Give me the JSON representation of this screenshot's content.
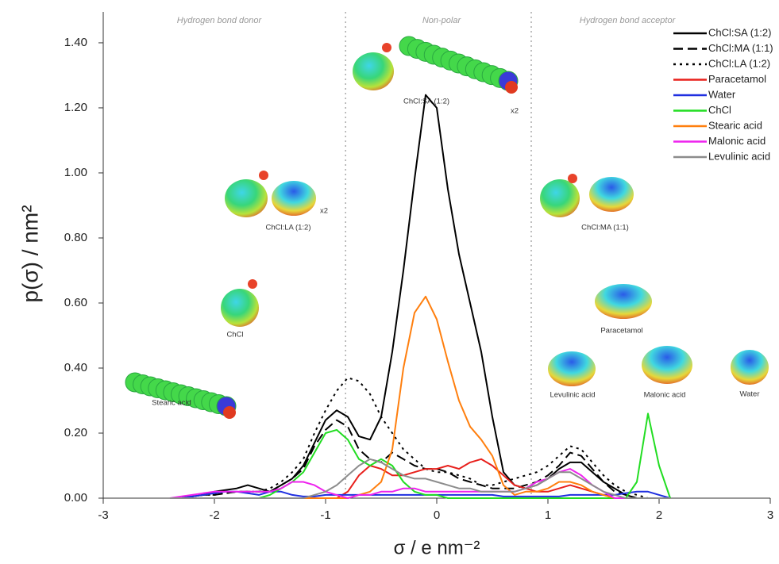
{
  "chart_data": {
    "type": "line",
    "xlabel": "σ / e nm⁻²",
    "ylabel": "p(σ) / nm²",
    "regions": [
      "Hydrogen bond donor",
      "Non-polar",
      "Hydrogen bond acceptor"
    ],
    "dividers": [
      -0.82,
      0.85
    ],
    "annotations": [
      "ChCl:SA (1:2)",
      "x2",
      "ChCl:LA (1:2)",
      "x2",
      "ChCl:MA (1:1)",
      "ChCl",
      "Paracetamol",
      "Stearic acid",
      "Levulinic acid",
      "Malonic acid",
      "Water"
    ],
    "x": [
      -2.4,
      -2.3,
      -2.2,
      -2.1,
      -2.0,
      -1.9,
      -1.8,
      -1.7,
      -1.6,
      -1.5,
      -1.4,
      -1.3,
      -1.2,
      -1.1,
      -1.0,
      -0.9,
      -0.8,
      -0.7,
      -0.6,
      -0.5,
      -0.4,
      -0.3,
      -0.2,
      -0.1,
      0.0,
      0.1,
      0.2,
      0.3,
      0.4,
      0.5,
      0.6,
      0.7,
      0.8,
      0.9,
      1.0,
      1.1,
      1.2,
      1.3,
      1.4,
      1.5,
      1.6,
      1.7,
      1.8,
      1.9,
      2.0,
      2.1
    ],
    "series": [
      {
        "name": "ChCl:SA (1:2)",
        "color": "#000000",
        "dash": "solid",
        "values": [
          0,
          0,
          0.005,
          0.01,
          0.02,
          0.025,
          0.03,
          0.04,
          0.03,
          0.02,
          0.04,
          0.06,
          0.1,
          0.17,
          0.24,
          0.27,
          0.25,
          0.19,
          0.18,
          0.25,
          0.45,
          0.7,
          0.98,
          1.24,
          1.2,
          0.95,
          0.75,
          0.6,
          0.45,
          0.25,
          0.08,
          0.04,
          0.03,
          0.04,
          0.06,
          0.09,
          0.11,
          0.11,
          0.08,
          0.05,
          0.03,
          0.01,
          0,
          0,
          0,
          0
        ]
      },
      {
        "name": "ChCl:MA (1:1)",
        "color": "#000000",
        "dash": "dashed",
        "values": [
          0,
          0,
          0.005,
          0.01,
          0.01,
          0.015,
          0.02,
          0.02,
          0.02,
          0.02,
          0.04,
          0.06,
          0.09,
          0.16,
          0.21,
          0.24,
          0.22,
          0.15,
          0.12,
          0.11,
          0.14,
          0.12,
          0.1,
          0.09,
          0.09,
          0.08,
          0.06,
          0.05,
          0.04,
          0.03,
          0.03,
          0.03,
          0.04,
          0.05,
          0.07,
          0.1,
          0.14,
          0.13,
          0.09,
          0.05,
          0.02,
          0.01,
          0,
          0,
          0,
          0
        ]
      },
      {
        "name": "ChCl:LA (1:2)",
        "color": "#000000",
        "dash": "dotted",
        "values": [
          0,
          0,
          0.005,
          0.01,
          0.01,
          0.015,
          0.02,
          0.02,
          0.02,
          0.03,
          0.05,
          0.08,
          0.12,
          0.2,
          0.27,
          0.33,
          0.37,
          0.36,
          0.32,
          0.25,
          0.2,
          0.15,
          0.12,
          0.09,
          0.08,
          0.08,
          0.07,
          0.06,
          0.04,
          0.04,
          0.05,
          0.06,
          0.07,
          0.08,
          0.1,
          0.13,
          0.16,
          0.15,
          0.11,
          0.07,
          0.04,
          0.02,
          0.01,
          0,
          0,
          0
        ]
      },
      {
        "name": "Paracetamol",
        "color": "#e8201c",
        "dash": "solid",
        "values": [
          0,
          0,
          0,
          0,
          0,
          0,
          0,
          0,
          0,
          0,
          0,
          0,
          0,
          0,
          0,
          0,
          0.02,
          0.07,
          0.1,
          0.09,
          0.07,
          0.07,
          0.08,
          0.09,
          0.09,
          0.1,
          0.09,
          0.11,
          0.12,
          0.1,
          0.07,
          0.04,
          0.03,
          0.02,
          0.02,
          0.03,
          0.04,
          0.03,
          0.02,
          0.01,
          0,
          0,
          0,
          0,
          0,
          0
        ]
      },
      {
        "name": "Water",
        "color": "#1f2fe0",
        "dash": "solid",
        "values": [
          0,
          0,
          0.005,
          0.01,
          0.015,
          0.02,
          0.02,
          0.015,
          0.01,
          0.02,
          0.02,
          0.01,
          0.005,
          0.005,
          0.01,
          0.01,
          0.01,
          0.01,
          0.01,
          0.01,
          0.01,
          0.01,
          0.01,
          0.01,
          0.01,
          0.01,
          0.01,
          0.01,
          0.01,
          0.01,
          0.005,
          0.005,
          0.005,
          0.005,
          0.005,
          0.005,
          0.01,
          0.01,
          0.01,
          0.01,
          0.01,
          0.015,
          0.02,
          0.02,
          0.01,
          0
        ]
      },
      {
        "name": "ChCl",
        "color": "#22dd22",
        "dash": "solid",
        "values": [
          0,
          0,
          0,
          0,
          0,
          0,
          0,
          0,
          0,
          0.01,
          0.03,
          0.05,
          0.08,
          0.14,
          0.2,
          0.21,
          0.18,
          0.12,
          0.1,
          0.12,
          0.1,
          0.05,
          0.02,
          0.01,
          0.01,
          0,
          0,
          0,
          0,
          0,
          0,
          0,
          0,
          0,
          0,
          0,
          0,
          0,
          0,
          0,
          0,
          0,
          0.05,
          0.26,
          0.1,
          0
        ]
      },
      {
        "name": "Stearic acid",
        "color": "#ff7f0e",
        "dash": "solid",
        "values": [
          0,
          0,
          0,
          0,
          0,
          0,
          0,
          0,
          0,
          0,
          0,
          0,
          0,
          0,
          0,
          0,
          0,
          0.01,
          0.02,
          0.05,
          0.15,
          0.4,
          0.57,
          0.62,
          0.55,
          0.42,
          0.3,
          0.22,
          0.18,
          0.13,
          0.04,
          0.01,
          0.02,
          0.02,
          0.03,
          0.05,
          0.05,
          0.04,
          0.02,
          0.01,
          0,
          0,
          0,
          0,
          0,
          0
        ]
      },
      {
        "name": "Malonic acid",
        "color": "#ee22ee",
        "dash": "solid",
        "values": [
          0,
          0.005,
          0.01,
          0.015,
          0.02,
          0.02,
          0.02,
          0.02,
          0.02,
          0.02,
          0.03,
          0.05,
          0.05,
          0.04,
          0.02,
          0.01,
          0,
          0.01,
          0.01,
          0.02,
          0.02,
          0.03,
          0.03,
          0.02,
          0.02,
          0.02,
          0.02,
          0.02,
          0.02,
          0.02,
          0.02,
          0.02,
          0.03,
          0.05,
          0.06,
          0.08,
          0.09,
          0.07,
          0.04,
          0.02,
          0,
          0,
          0,
          0,
          0,
          0
        ]
      },
      {
        "name": "Levulinic acid",
        "color": "#8c8c8c",
        "dash": "solid",
        "values": [
          0,
          0,
          0,
          0,
          0,
          0,
          0,
          0,
          0,
          0,
          0,
          0,
          0,
          0.01,
          0.02,
          0.04,
          0.07,
          0.1,
          0.12,
          0.11,
          0.09,
          0.07,
          0.06,
          0.06,
          0.05,
          0.04,
          0.03,
          0.03,
          0.02,
          0.02,
          0.02,
          0.02,
          0.03,
          0.04,
          0.06,
          0.08,
          0.08,
          0.06,
          0.04,
          0.02,
          0.01,
          0,
          0,
          0,
          0,
          0
        ]
      }
    ],
    "xlim": [
      -3,
      3
    ],
    "xticks": [
      -3,
      -2,
      -1,
      0,
      1,
      2,
      3
    ],
    "ylim": [
      0,
      1.495
    ],
    "yticks": [
      {
        "value": 0,
        "label": "0.00"
      },
      {
        "value": 0.2,
        "label": "0.20"
      },
      {
        "value": 0.4,
        "label": "0.40"
      },
      {
        "value": 0.6,
        "label": "0.60"
      },
      {
        "value": 0.8,
        "label": "0.80"
      },
      {
        "value": 1.0,
        "label": "1.00"
      },
      {
        "value": 1.2,
        "label": "1.20"
      },
      {
        "value": 1.4,
        "label": "1.40"
      }
    ],
    "legend": "top-right"
  }
}
